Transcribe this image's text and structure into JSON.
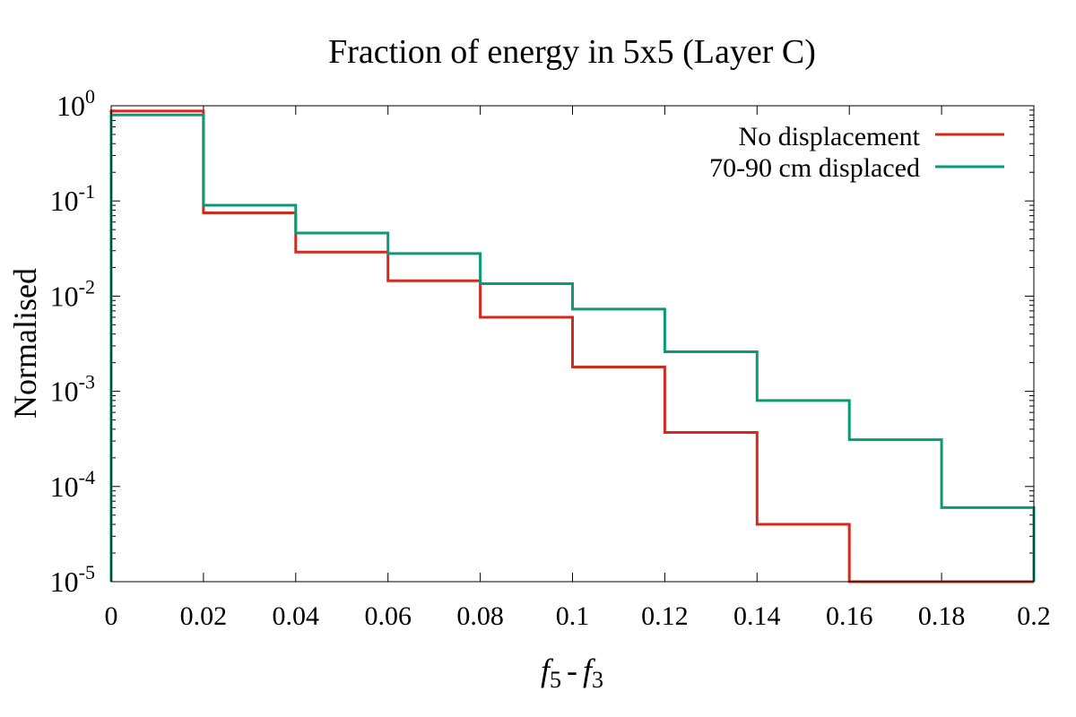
{
  "chart_data": {
    "type": "line",
    "step": "histogram",
    "title": "Fraction of energy in 5x5 (Layer C)",
    "xlabel": {
      "f1": "f",
      "sub1": "5",
      "minus": "-",
      "f2": "f",
      "sub2": "3"
    },
    "ylabel": "Normalised",
    "xlim": [
      0,
      0.2
    ],
    "ylim": [
      1e-05,
      1
    ],
    "yscale": "log",
    "xticks": [
      "0",
      "0.02",
      "0.04",
      "0.06",
      "0.08",
      "0.1",
      "0.12",
      "0.14",
      "0.16",
      "0.18",
      "0.2"
    ],
    "yticks": [
      {
        "base": "10",
        "exp": "0"
      },
      {
        "base": "10",
        "exp": "-1"
      },
      {
        "base": "10",
        "exp": "-2"
      },
      {
        "base": "10",
        "exp": "-3"
      },
      {
        "base": "10",
        "exp": "-4"
      },
      {
        "base": "10",
        "exp": "-5"
      }
    ],
    "grid": false,
    "legend_position": "top-right",
    "bin_edges": [
      0,
      0.02,
      0.04,
      0.06,
      0.08,
      0.1,
      0.12,
      0.14,
      0.16,
      0.18,
      0.2
    ],
    "series": [
      {
        "name": "No displacement",
        "color": "#d42a1e",
        "values": [
          0.88,
          0.075,
          0.029,
          0.0145,
          0.006,
          0.0018,
          0.00037,
          4e-05,
          0,
          0
        ]
      },
      {
        "name": "70-90 cm displaced",
        "color": "#0a9a76",
        "values": [
          0.8,
          0.09,
          0.046,
          0.028,
          0.0135,
          0.0073,
          0.0026,
          0.0008,
          0.00031,
          6e-05
        ]
      }
    ]
  }
}
